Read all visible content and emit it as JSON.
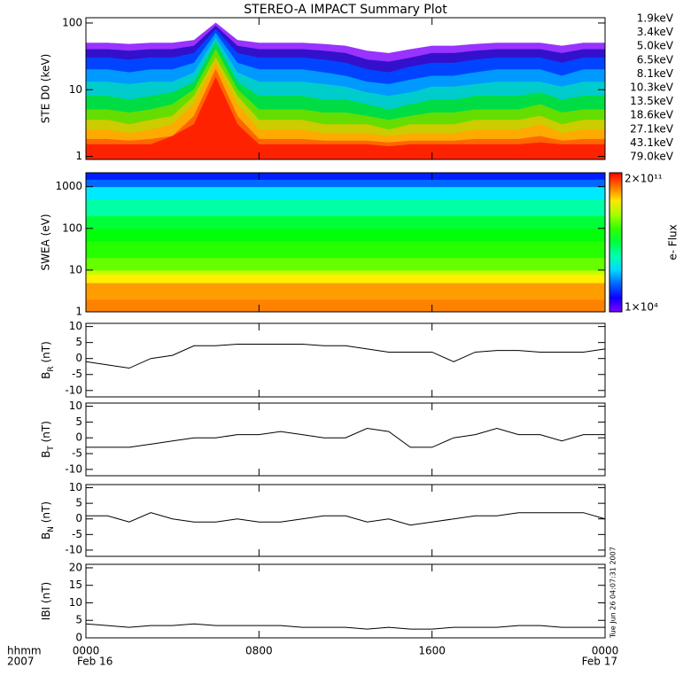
{
  "title": "STEREO-A IMPACT Summary Plot",
  "bottom_labels": {
    "row1": "hhmm",
    "row2": "2007",
    "start_date": "Feb 16",
    "end_date": "Feb 17"
  },
  "timestamp": "Tue Jun 26 04:07:31 2007",
  "chart_data": [
    {
      "type": "area",
      "ylabel": "STE D0 (keV)",
      "ylog": true,
      "ylim": [
        0.9,
        120
      ],
      "yticks": [
        1,
        10,
        100
      ],
      "xlim": [
        0,
        24
      ],
      "xticks": [
        0,
        8,
        16,
        24
      ],
      "x": [
        0,
        1,
        2,
        3,
        4,
        5,
        6,
        7,
        8,
        9,
        10,
        11,
        12,
        13,
        14,
        15,
        16,
        17,
        18,
        19,
        20,
        21,
        22,
        23,
        24
      ],
      "series": [
        {
          "name": "1.9keV",
          "color": "#9933ff",
          "values": [
            50,
            50,
            48,
            50,
            50,
            55,
            100,
            55,
            50,
            50,
            50,
            48,
            45,
            38,
            35,
            40,
            45,
            45,
            48,
            50,
            50,
            50,
            45,
            50,
            50
          ]
        },
        {
          "name": "3.4keV",
          "color": "#3311cc",
          "values": [
            40,
            40,
            38,
            40,
            40,
            45,
            90,
            45,
            40,
            40,
            40,
            38,
            35,
            28,
            26,
            30,
            35,
            35,
            38,
            40,
            40,
            40,
            35,
            40,
            40
          ]
        },
        {
          "name": "5.0keV",
          "color": "#0044ff",
          "values": [
            30,
            30,
            28,
            30,
            30,
            35,
            80,
            35,
            30,
            30,
            30,
            28,
            25,
            20,
            18,
            22,
            25,
            25,
            28,
            30,
            30,
            30,
            25,
            30,
            30
          ]
        },
        {
          "name": "6.5keV",
          "color": "#0099ff",
          "values": [
            20,
            20,
            18,
            20,
            20,
            25,
            70,
            25,
            20,
            20,
            20,
            18,
            16,
            13,
            12,
            14,
            16,
            16,
            18,
            20,
            20,
            20,
            16,
            20,
            20
          ]
        },
        {
          "name": "8.1keV",
          "color": "#00cccc",
          "values": [
            13,
            13,
            12,
            13,
            13,
            18,
            60,
            18,
            13,
            13,
            13,
            12,
            11,
            9,
            8,
            9,
            11,
            11,
            12,
            13,
            13,
            13,
            11,
            13,
            13
          ]
        },
        {
          "name": "10.3keV",
          "color": "#00dd44",
          "values": [
            8,
            8,
            7,
            8,
            9,
            13,
            50,
            13,
            8,
            8,
            8,
            7,
            7,
            6,
            5,
            6,
            7,
            7,
            8,
            8,
            8,
            9,
            7,
            8,
            8
          ]
        },
        {
          "name": "13.5keV",
          "color": "#66dd00",
          "values": [
            5,
            5,
            4.5,
            5,
            6,
            10,
            40,
            10,
            5,
            5,
            5,
            4.5,
            4.5,
            4,
            3.5,
            4,
            4.5,
            4.5,
            5,
            5,
            5,
            6,
            4.5,
            5,
            5
          ]
        },
        {
          "name": "18.6keV",
          "color": "#cccc00",
          "values": [
            3.5,
            3.5,
            3,
            3.5,
            4,
            8,
            30,
            8,
            3.5,
            3.5,
            3.5,
            3,
            3,
            3,
            2.5,
            3,
            3,
            3,
            3.5,
            3.5,
            3.5,
            4,
            3,
            3.5,
            3.5
          ]
        },
        {
          "name": "27.1keV",
          "color": "#ffaa00",
          "values": [
            2.5,
            2.5,
            2.2,
            2.5,
            3,
            6,
            25,
            6,
            2.5,
            2.5,
            2.5,
            2.2,
            2.2,
            2.2,
            2,
            2.2,
            2.2,
            2.2,
            2.5,
            2.5,
            2.5,
            3,
            2.2,
            2.5,
            2.5
          ]
        },
        {
          "name": "43.1keV",
          "color": "#ff6600",
          "values": [
            1.8,
            1.8,
            1.7,
            1.8,
            2,
            4,
            20,
            4,
            1.8,
            1.8,
            1.8,
            1.7,
            1.7,
            1.7,
            1.6,
            1.7,
            1.7,
            1.7,
            1.8,
            1.8,
            1.8,
            2,
            1.7,
            1.8,
            1.8
          ]
        },
        {
          "name": "79.0keV",
          "color": "#ff2200",
          "values": [
            1.5,
            1.5,
            1.5,
            1.5,
            2,
            3,
            15,
            3,
            1.5,
            1.5,
            1.5,
            1.5,
            1.5,
            1.5,
            1.4,
            1.5,
            1.5,
            1.5,
            1.5,
            1.5,
            1.5,
            1.6,
            1.5,
            1.5,
            1.5
          ]
        }
      ]
    },
    {
      "type": "heatmap",
      "ylabel": "SWEA (eV)",
      "ylog": true,
      "ylim": [
        1,
        2150
      ],
      "yticks": [
        1,
        10,
        100,
        1000
      ],
      "xlim": [
        0,
        24
      ],
      "xticks": [
        0,
        8,
        16,
        24
      ],
      "ybins": [
        1,
        2,
        5,
        8,
        10,
        20,
        50,
        100,
        200,
        500,
        1000,
        1500,
        2150
      ],
      "values": [
        30000000000.0,
        20000000000.0,
        6000000000.0,
        2000000000.0,
        500000000.0,
        200000000.0,
        100000000.0,
        50000000.0,
        10000000.0,
        2000000.0,
        300000.0,
        100000.0
      ],
      "colorbar_label": "e- Flux",
      "clim": [
        10000.0,
        200000000000.0
      ],
      "cticks": [
        {
          "value": 200000000000.0,
          "label": "2×10¹¹"
        },
        {
          "value": 10000.0,
          "label": "1×10⁴"
        }
      ]
    },
    {
      "type": "line",
      "ylabel": [
        "B",
        "R",
        " (nT)"
      ],
      "ylim": [
        -12,
        11
      ],
      "yticks": [
        -10,
        -5,
        0,
        5,
        10
      ],
      "xlim": [
        0,
        24
      ],
      "xticks": [
        0,
        8,
        16,
        24
      ],
      "x": [
        0,
        1,
        2,
        3,
        4,
        5,
        6,
        7,
        8,
        9,
        10,
        11,
        12,
        13,
        14,
        15,
        16,
        17,
        18,
        19,
        20,
        21,
        22,
        23,
        24
      ],
      "values": [
        -1,
        -2,
        -3,
        0,
        1,
        4,
        4,
        4.5,
        4.5,
        4.5,
        4.5,
        4,
        4,
        3,
        2,
        2,
        2,
        -1,
        2,
        2.5,
        2.5,
        2,
        2,
        2,
        3
      ]
    },
    {
      "type": "line",
      "ylabel": [
        "B",
        "T",
        " (nT)"
      ],
      "ylim": [
        -12,
        11
      ],
      "yticks": [
        -10,
        -5,
        0,
        5,
        10
      ],
      "xlim": [
        0,
        24
      ],
      "xticks": [
        0,
        8,
        16,
        24
      ],
      "x": [
        0,
        1,
        2,
        3,
        4,
        5,
        6,
        7,
        8,
        9,
        10,
        11,
        12,
        13,
        14,
        15,
        16,
        17,
        18,
        19,
        20,
        21,
        22,
        23,
        24
      ],
      "values": [
        -3,
        -3,
        -3,
        -2,
        -1,
        0,
        0,
        1,
        1,
        2,
        1,
        0,
        0,
        3,
        2,
        -3,
        -3,
        0,
        1,
        3,
        1,
        1,
        -1,
        1,
        1
      ]
    },
    {
      "type": "line",
      "ylabel": [
        "B",
        "N",
        " (nT)"
      ],
      "ylim": [
        -12,
        11
      ],
      "yticks": [
        -10,
        -5,
        0,
        5,
        10
      ],
      "xlim": [
        0,
        24
      ],
      "xticks": [
        0,
        8,
        16,
        24
      ],
      "x": [
        0,
        1,
        2,
        3,
        4,
        5,
        6,
        7,
        8,
        9,
        10,
        11,
        12,
        13,
        14,
        15,
        16,
        17,
        18,
        19,
        20,
        21,
        22,
        23,
        24
      ],
      "values": [
        1,
        1,
        -1,
        2,
        0,
        -1,
        -1,
        0,
        -1,
        -1,
        0,
        1,
        1,
        -1,
        0,
        -2,
        -1,
        0,
        1,
        1,
        2,
        2,
        2,
        2,
        0
      ]
    },
    {
      "type": "line",
      "ylabel": [
        "IBI (nT)"
      ],
      "ylim": [
        0,
        21
      ],
      "yticks": [
        0,
        5,
        10,
        15,
        20
      ],
      "xlim": [
        0,
        24
      ],
      "xticks": [
        {
          "value": 0,
          "label": "0000"
        },
        {
          "value": 8,
          "label": "0800"
        },
        {
          "value": 16,
          "label": "1600"
        },
        {
          "value": 24,
          "label": "0000"
        }
      ],
      "x": [
        0,
        1,
        2,
        3,
        4,
        5,
        6,
        7,
        8,
        9,
        10,
        11,
        12,
        13,
        14,
        15,
        16,
        17,
        18,
        19,
        20,
        21,
        22,
        23,
        24
      ],
      "values": [
        4,
        3.5,
        3,
        3.5,
        3.5,
        4,
        3.5,
        3.5,
        3.5,
        3.5,
        3,
        3,
        3,
        2.5,
        3,
        2.5,
        2.5,
        3,
        3,
        3,
        3.5,
        3.5,
        3,
        3,
        3
      ]
    }
  ]
}
